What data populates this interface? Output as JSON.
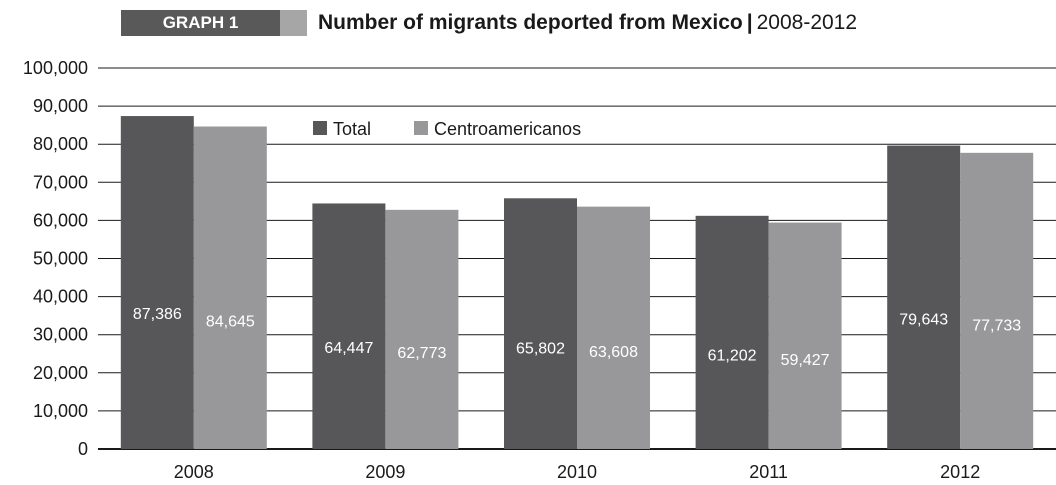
{
  "header": {
    "tag": "GRAPH 1",
    "title": "Number of migrants deported from Mexico",
    "separator": "|",
    "years": "2008-2012"
  },
  "colors": {
    "total": "#575759",
    "centroamericanos": "#98989b",
    "tag_dark": "#595959",
    "tag_light": "#a6a6a6",
    "gridline": "#1a1a1a"
  },
  "chart_data": {
    "type": "bar",
    "title": "Number of migrants deported from Mexico | 2008-2012",
    "categories": [
      "2008",
      "2009",
      "2010",
      "2011",
      "2012"
    ],
    "series": [
      {
        "name": "Total",
        "values": [
          87386,
          64447,
          65802,
          61202,
          79643
        ],
        "labels": [
          "87,386",
          "64,447",
          "65,802",
          "61,202",
          "79,643"
        ]
      },
      {
        "name": "Centroamericanos",
        "values": [
          84645,
          62773,
          63608,
          59427,
          77733
        ],
        "labels": [
          "84,645",
          "62,773",
          "63,608",
          "59,427",
          "77,733"
        ]
      }
    ],
    "ylim": [
      0,
      100000
    ],
    "yticks": [
      0,
      10000,
      20000,
      30000,
      40000,
      50000,
      60000,
      70000,
      80000,
      90000,
      100000
    ],
    "ytick_labels": [
      "0",
      "10,000",
      "20,000",
      "30,000",
      "40,000",
      "50,000",
      "60,000",
      "70,000",
      "80,000",
      "90,000",
      "100,000"
    ],
    "xlabel": "",
    "ylabel": "",
    "grid": true,
    "legend_position": "top-center"
  }
}
